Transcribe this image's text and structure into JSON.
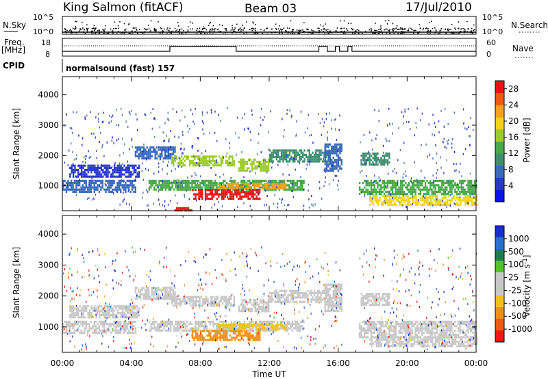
{
  "header": {
    "station": "King Salmon (fitACF)",
    "beam": "Beam 03",
    "date": "17/Jul/2010"
  },
  "status_panels": {
    "nsky_label": "N.Sky",
    "nsearch_label": "N.Search",
    "nsky_ticks": [
      "10^5",
      "10^0"
    ],
    "nsearch_ticks": [
      "10^5",
      "10^0"
    ],
    "freq_label_1": "Freq.",
    "freq_label_2": "[MHz]",
    "freq_ticks": [
      "18",
      "8"
    ],
    "nave_label": "Nave",
    "nave_ticks": [
      "60",
      "0"
    ],
    "cpid_label": "CPID",
    "cpid_value": "normalsound (fast) 157"
  },
  "colors": {
    "power_scale": [
      "#0a14e6",
      "#2838c8",
      "#3a6ab8",
      "#3f8f6f",
      "#4aa84a",
      "#9ccc2a",
      "#f2d21a",
      "#f5a01a",
      "#ee5a12",
      "#e61414"
    ],
    "velocity_scale": [
      "#1830c8",
      "#2a6fd0",
      "#1f7a5a",
      "#55c22a",
      "#c8c8c8",
      "#c8c8c8",
      "#f2c21a",
      "#f09018",
      "#ec5a14",
      "#e81a10"
    ]
  },
  "chart_data": [
    {
      "type": "heatmap",
      "panel": "power",
      "xlabel": "Time UT",
      "ylabel": "Slant Range [km]",
      "xlim": [
        0,
        24
      ],
      "ylim": [
        180,
        4600
      ],
      "x_tick_labels": [
        "00:00",
        "04:00",
        "08:00",
        "12:00",
        "16:00",
        "20:00",
        "00:00"
      ],
      "y_tick_labels": [
        "1000",
        "2000",
        "3000",
        "4000"
      ],
      "colorbar": {
        "label": "Power [dB]",
        "tick_labels": [
          "28",
          "24",
          "20",
          "16",
          "12",
          "8",
          "4"
        ],
        "range": [
          0,
          30
        ]
      },
      "bands": [
        {
          "t0": 0.0,
          "t1": 4.2,
          "r0": 800,
          "r1": 1200,
          "value": 6
        },
        {
          "t0": 0.4,
          "t1": 4.5,
          "r0": 1300,
          "r1": 1700,
          "value": 5
        },
        {
          "t0": 4.2,
          "t1": 6.5,
          "r0": 1900,
          "r1": 2300,
          "value": 8
        },
        {
          "t0": 6.3,
          "t1": 10.0,
          "r0": 1700,
          "r1": 2000,
          "value": 16
        },
        {
          "t0": 10.2,
          "t1": 12.0,
          "r0": 1500,
          "r1": 1900,
          "value": 17
        },
        {
          "t0": 12.0,
          "t1": 15.5,
          "r0": 1800,
          "r1": 2200,
          "value": 11
        },
        {
          "t0": 5.0,
          "t1": 14.0,
          "r0": 900,
          "r1": 1200,
          "value": 14
        },
        {
          "t0": 7.5,
          "t1": 11.5,
          "r0": 600,
          "r1": 900,
          "value": 28
        },
        {
          "t0": 9.0,
          "t1": 13.0,
          "r0": 900,
          "r1": 1100,
          "value": 22
        },
        {
          "t0": 15.2,
          "t1": 16.2,
          "r0": 1500,
          "r1": 2400,
          "value": 7
        },
        {
          "t0": 17.3,
          "t1": 19.0,
          "r0": 1700,
          "r1": 2100,
          "value": 10
        },
        {
          "t0": 17.2,
          "t1": 24.0,
          "r0": 700,
          "r1": 1200,
          "value": 12
        },
        {
          "t0": 17.8,
          "t1": 24.0,
          "r0": 400,
          "r1": 700,
          "value": 20
        },
        {
          "t0": 6.5,
          "t1": 7.5,
          "r0": 200,
          "r1": 300,
          "value": 28
        }
      ]
    },
    {
      "type": "heatmap",
      "panel": "velocity",
      "xlabel": "Time UT",
      "ylabel": "Slant Range [km]",
      "xlim": [
        0,
        24
      ],
      "ylim": [
        180,
        4600
      ],
      "x_tick_labels": [
        "00:00",
        "04:00",
        "08:00",
        "12:00",
        "16:00",
        "20:00",
        "00:00"
      ],
      "y_tick_labels": [
        "1000",
        "2000",
        "3000",
        "4000"
      ],
      "colorbar": {
        "label": "Velocity [m s^-1]",
        "tick_labels": [
          "1000",
          "500",
          "100",
          "25",
          "-25",
          "-100",
          "-500",
          "-1000"
        ],
        "range": [
          -1000,
          1000
        ]
      },
      "bands": [
        {
          "t0": 0.0,
          "t1": 4.2,
          "r0": 800,
          "r1": 1200,
          "value": 0
        },
        {
          "t0": 0.4,
          "t1": 4.5,
          "r0": 1300,
          "r1": 1700,
          "value": 0
        },
        {
          "t0": 4.2,
          "t1": 6.5,
          "r0": 1900,
          "r1": 2300,
          "value": 0
        },
        {
          "t0": 6.3,
          "t1": 10.0,
          "r0": 1700,
          "r1": 2000,
          "value": 0
        },
        {
          "t0": 10.2,
          "t1": 12.0,
          "r0": 1500,
          "r1": 1900,
          "value": 0
        },
        {
          "t0": 12.0,
          "t1": 15.5,
          "r0": 1800,
          "r1": 2200,
          "value": 0
        },
        {
          "t0": 5.0,
          "t1": 14.0,
          "r0": 900,
          "r1": 1200,
          "value": 0
        },
        {
          "t0": 7.5,
          "t1": 11.5,
          "r0": 600,
          "r1": 900,
          "value": -150
        },
        {
          "t0": 9.0,
          "t1": 13.0,
          "r0": 900,
          "r1": 1100,
          "value": -60
        },
        {
          "t0": 15.2,
          "t1": 16.2,
          "r0": 1500,
          "r1": 2400,
          "value": 0
        },
        {
          "t0": 17.3,
          "t1": 19.0,
          "r0": 1700,
          "r1": 2100,
          "value": 0
        },
        {
          "t0": 17.2,
          "t1": 24.0,
          "r0": 700,
          "r1": 1200,
          "value": 0
        },
        {
          "t0": 17.8,
          "t1": 24.0,
          "r0": 400,
          "r1": 700,
          "value": 0
        }
      ]
    }
  ]
}
